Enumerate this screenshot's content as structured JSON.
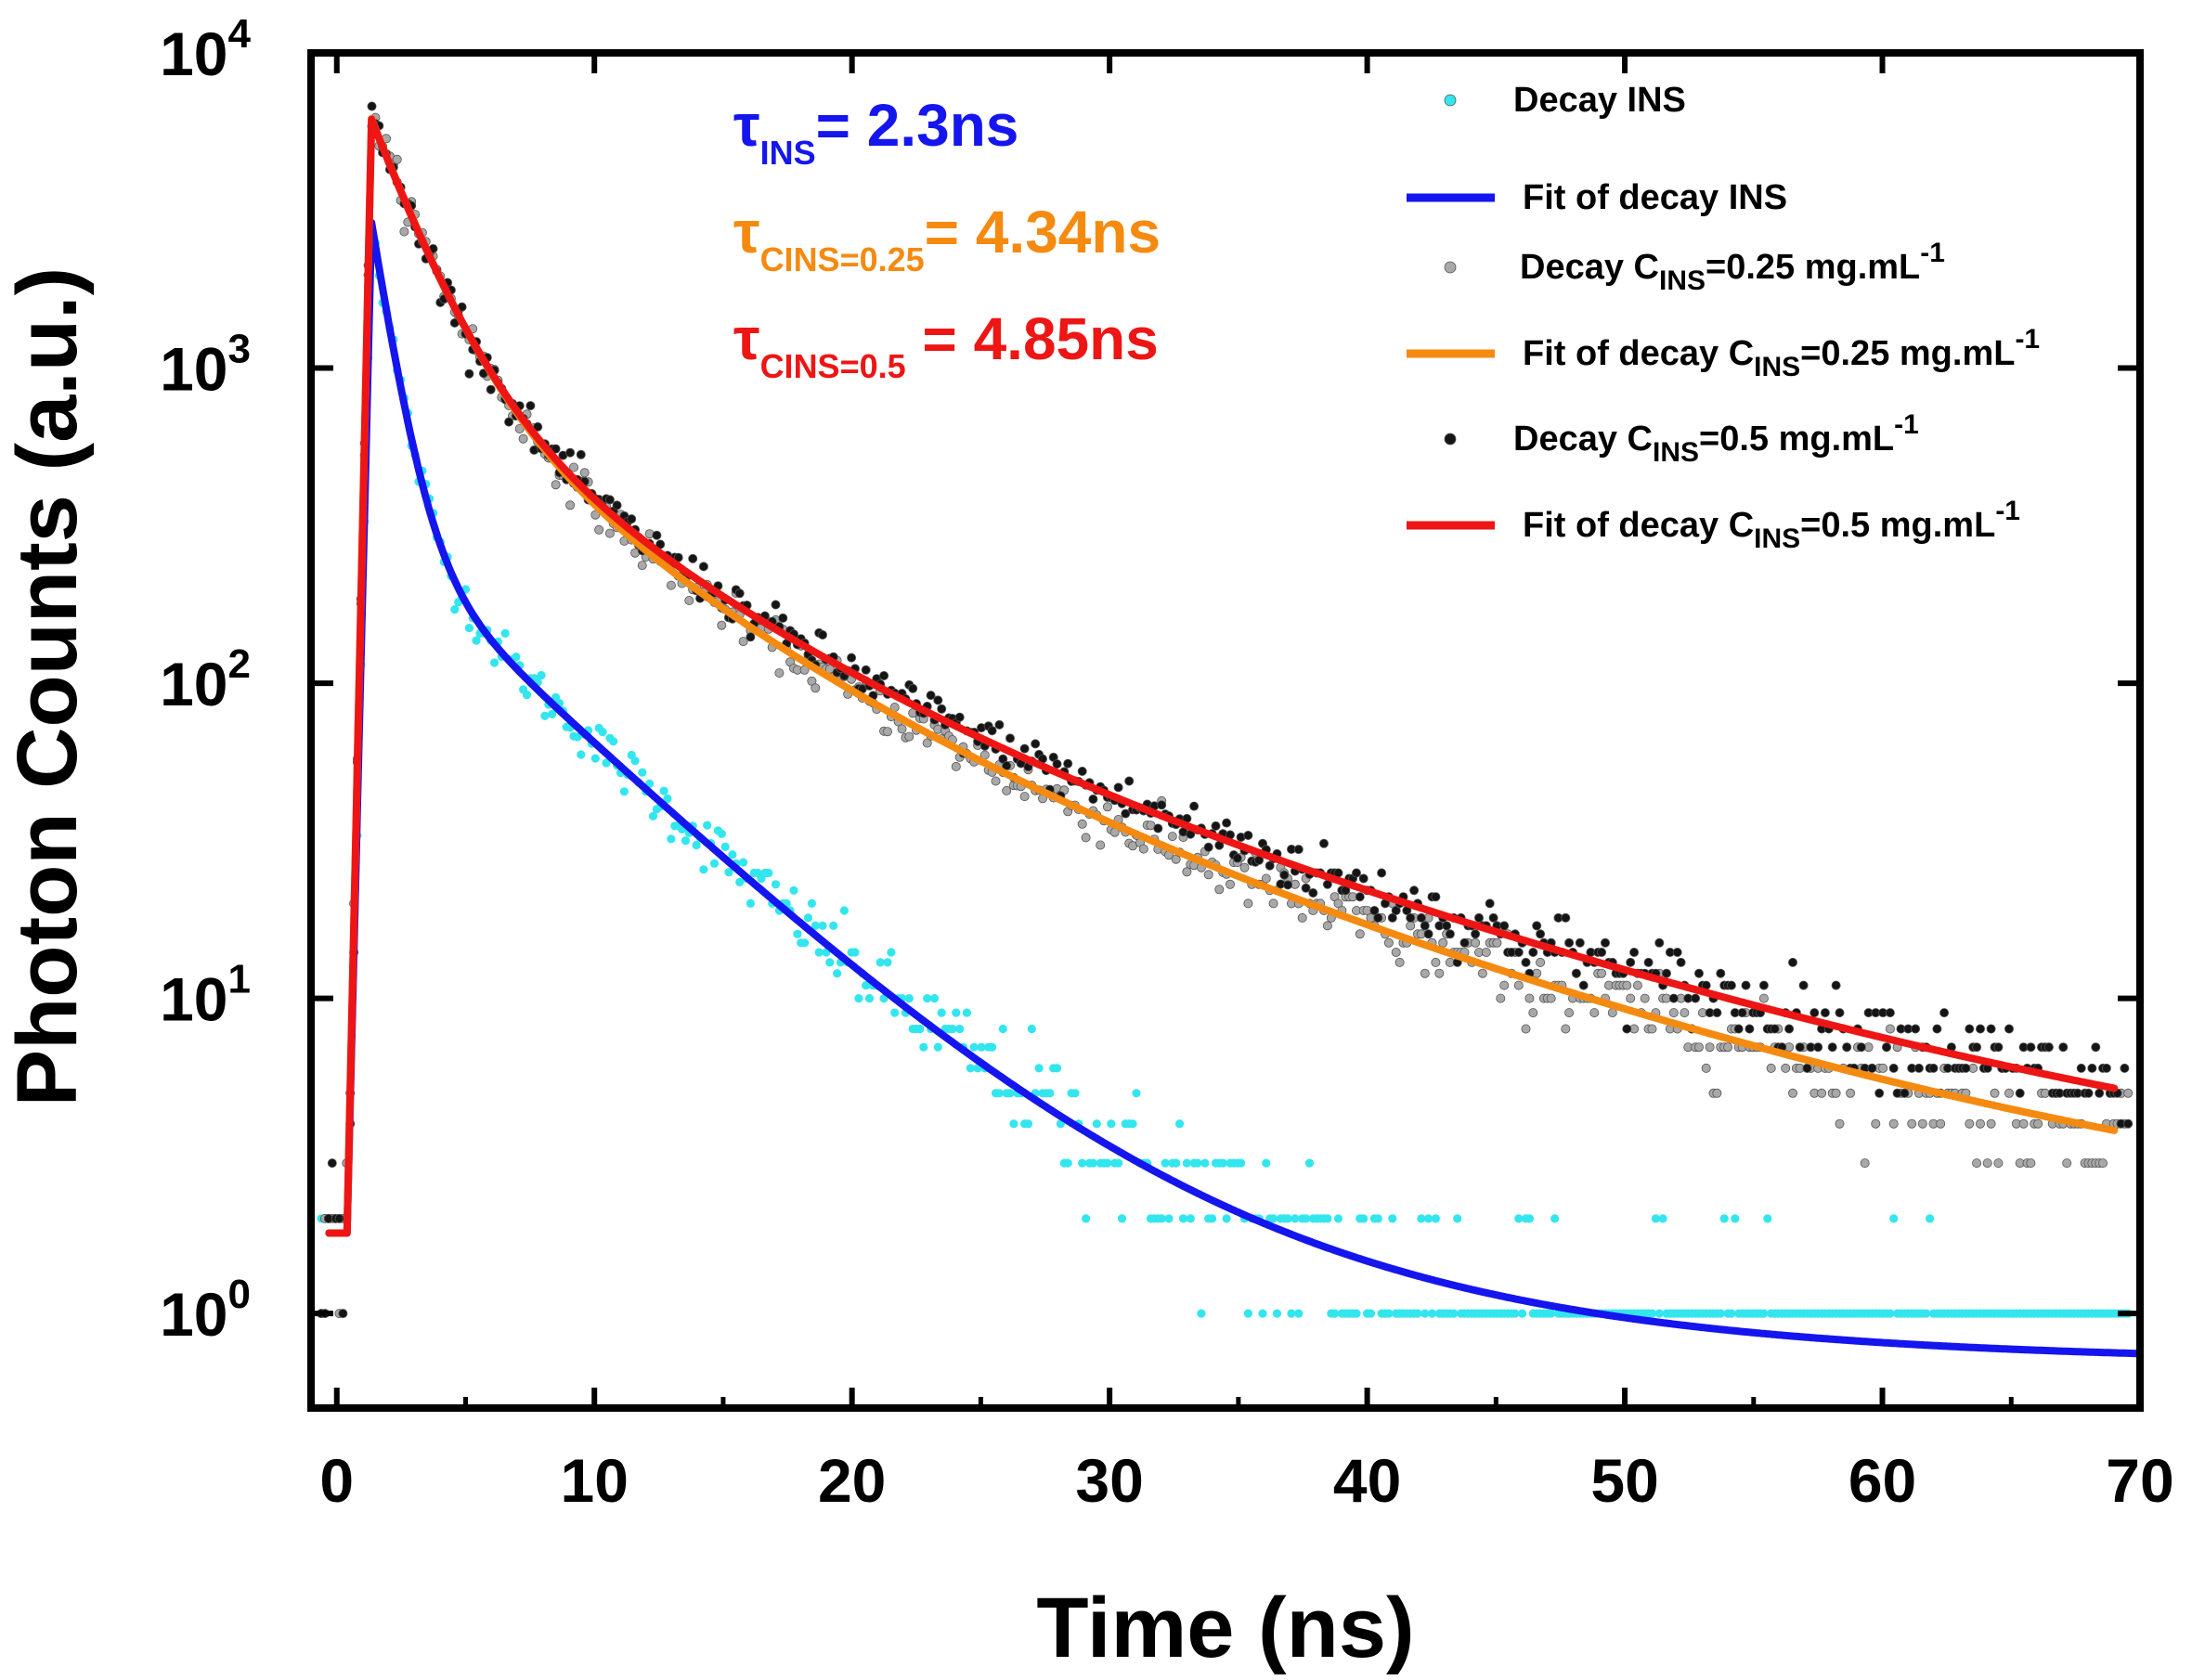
{
  "chart_data": {
    "type": "scatter",
    "title": "",
    "xlabel": "Time (ns)",
    "ylabel": "Photon Counts (a.u.)",
    "xlim": [
      -1,
      70
    ],
    "ylim_log10": [
      -0.3,
      4
    ],
    "yscale": "log",
    "x_ticks": [
      {
        "value": 0,
        "label": "0"
      },
      {
        "value": 10,
        "label": "10"
      },
      {
        "value": 20,
        "label": "20"
      },
      {
        "value": 30,
        "label": "30"
      },
      {
        "value": 40,
        "label": "40"
      },
      {
        "value": 50,
        "label": "50"
      },
      {
        "value": 60,
        "label": "60"
      },
      {
        "value": 70,
        "label": "70"
      }
    ],
    "y_ticks": [
      {
        "value": 1,
        "base": "10",
        "exp": "0"
      },
      {
        "value": 10,
        "base": "10",
        "exp": "1"
      },
      {
        "value": 100,
        "base": "10",
        "exp": "2"
      },
      {
        "value": 1000,
        "base": "10",
        "exp": "3"
      },
      {
        "value": 10000,
        "base": "10",
        "exp": "4"
      }
    ],
    "annotations": [
      {
        "symbol": "τ",
        "sub": "INS",
        "text": "= 2.3ns",
        "color": "#1515ee"
      },
      {
        "symbol": "τ",
        "sub": "CINS=0.25",
        "text": "= 4.34ns",
        "color": "#f58a10"
      },
      {
        "symbol": "τ",
        "sub": "CINS=0.5",
        "text": " = 4.85ns",
        "color": "#ee1515"
      }
    ],
    "series": [
      {
        "name": "Decay INS",
        "kind": "scatter",
        "color": "#33e6ee",
        "fit": {
          "a1": 2600,
          "t1": 0.8,
          "a2": 280,
          "t2": 5.5,
          "a3": 12,
          "t3": 12.3,
          "c": 0.7
        },
        "noise": 0.3
      },
      {
        "name": "Fit of decay INS",
        "kind": "line",
        "color": "#1515ee",
        "fit": {
          "a1": 2600,
          "t1": 0.8,
          "a2": 280,
          "t2": 5.5,
          "a3": 12,
          "t3": 12.3,
          "c": 0.7
        }
      },
      {
        "name": "Decay C_INS=0.25 mg.mL-1",
        "kind": "scatter",
        "color": "#a8a8a8",
        "fit": {
          "a1": 5000,
          "t1": 1.8,
          "a2": 1000,
          "t2": 5.8,
          "a3": 180,
          "t3": 15.2,
          "c": 1.7
        },
        "noise": 0.28
      },
      {
        "name": "Fit of decay C_INS=0.25 mg.mL-1",
        "kind": "line",
        "color": "#f58a10",
        "x_end": 69,
        "fit": {
          "a1": 5000,
          "t1": 1.8,
          "a2": 1000,
          "t2": 5.8,
          "a3": 180,
          "t3": 15.2,
          "c": 1.7
        }
      },
      {
        "name": "Decay C_INS=0.5 mg.mL-1",
        "kind": "scatter",
        "color": "#151515",
        "fit": {
          "a1": 5000,
          "t1": 1.8,
          "a2": 950,
          "t2": 6.0,
          "a3": 200,
          "t3": 16.2,
          "c": 2.1
        },
        "noise": 0.28
      },
      {
        "name": "Fit of decay C_INS=0.5 mg.mL-1",
        "kind": "line",
        "color": "#ee1515",
        "x_end": 69,
        "fit": {
          "a1": 5000,
          "t1": 1.8,
          "a2": 950,
          "t2": 6.0,
          "a3": 200,
          "t3": 16.2,
          "c": 2.1
        }
      }
    ],
    "legend": {
      "position": "top-right",
      "entries": [
        {
          "kind": "marker",
          "color": "#33e6ee",
          "parts": [
            {
              "t": "Decay INS"
            }
          ]
        },
        {
          "kind": "line",
          "color": "#1515ee",
          "parts": [
            {
              "t": "Fit of decay INS"
            }
          ]
        },
        {
          "kind": "marker",
          "color": "#a8a8a8",
          "parts": [
            {
              "t": "Decay C"
            },
            {
              "t": "INS",
              "s": "sub"
            },
            {
              "t": "=0.25 mg.mL"
            },
            {
              "t": "-1",
              "s": "sup"
            }
          ]
        },
        {
          "kind": "line",
          "color": "#f58a10",
          "parts": [
            {
              "t": "Fit of decay C"
            },
            {
              "t": "INS",
              "s": "sub"
            },
            {
              "t": "=0.25 mg.mL"
            },
            {
              "t": "-1",
              "s": "sup"
            }
          ]
        },
        {
          "kind": "marker",
          "color": "#151515",
          "parts": [
            {
              "t": "Decay C"
            },
            {
              "t": "INS",
              "s": "sub"
            },
            {
              "t": "=0.5 mg.mL"
            },
            {
              "t": "-1",
              "s": "sup"
            }
          ]
        },
        {
          "kind": "line",
          "color": "#ee1515",
          "parts": [
            {
              "t": "Fit of decay C"
            },
            {
              "t": "INS",
              "s": "sub"
            },
            {
              "t": "=0.5 mg.mL"
            },
            {
              "t": "-1",
              "s": "sup"
            }
          ]
        }
      ]
    }
  }
}
